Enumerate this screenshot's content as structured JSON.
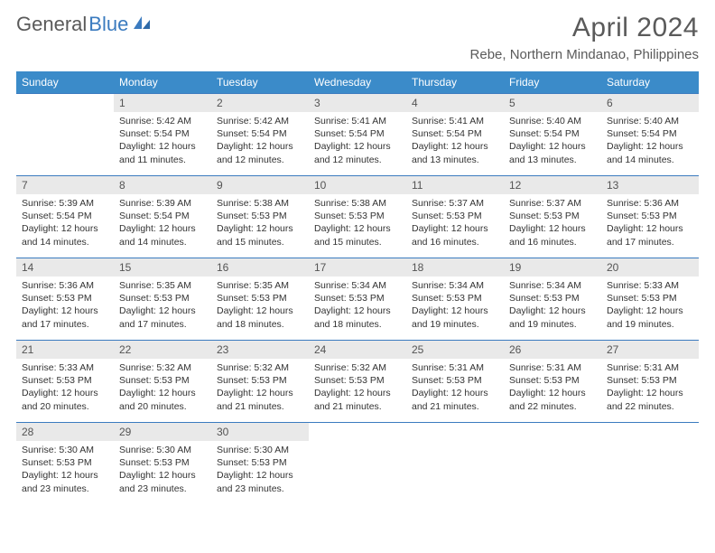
{
  "logo": {
    "text1": "General",
    "text2": "Blue"
  },
  "title": "April 2024",
  "location": "Rebe, Northern Mindanao, Philippines",
  "weekdays": [
    "Sunday",
    "Monday",
    "Tuesday",
    "Wednesday",
    "Thursday",
    "Friday",
    "Saturday"
  ],
  "colors": {
    "header_bg": "#3b8bc9",
    "header_fg": "#ffffff",
    "daynum_bg": "#e9e9e9",
    "row_divider": "#3b7bbf",
    "text": "#333333",
    "title_color": "#5a5a5a"
  },
  "days": [
    {
      "n": "",
      "sunrise": "",
      "sunset": "",
      "daylight": ""
    },
    {
      "n": "1",
      "sunrise": "Sunrise: 5:42 AM",
      "sunset": "Sunset: 5:54 PM",
      "daylight": "Daylight: 12 hours and 11 minutes."
    },
    {
      "n": "2",
      "sunrise": "Sunrise: 5:42 AM",
      "sunset": "Sunset: 5:54 PM",
      "daylight": "Daylight: 12 hours and 12 minutes."
    },
    {
      "n": "3",
      "sunrise": "Sunrise: 5:41 AM",
      "sunset": "Sunset: 5:54 PM",
      "daylight": "Daylight: 12 hours and 12 minutes."
    },
    {
      "n": "4",
      "sunrise": "Sunrise: 5:41 AM",
      "sunset": "Sunset: 5:54 PM",
      "daylight": "Daylight: 12 hours and 13 minutes."
    },
    {
      "n": "5",
      "sunrise": "Sunrise: 5:40 AM",
      "sunset": "Sunset: 5:54 PM",
      "daylight": "Daylight: 12 hours and 13 minutes."
    },
    {
      "n": "6",
      "sunrise": "Sunrise: 5:40 AM",
      "sunset": "Sunset: 5:54 PM",
      "daylight": "Daylight: 12 hours and 14 minutes."
    },
    {
      "n": "7",
      "sunrise": "Sunrise: 5:39 AM",
      "sunset": "Sunset: 5:54 PM",
      "daylight": "Daylight: 12 hours and 14 minutes."
    },
    {
      "n": "8",
      "sunrise": "Sunrise: 5:39 AM",
      "sunset": "Sunset: 5:54 PM",
      "daylight": "Daylight: 12 hours and 14 minutes."
    },
    {
      "n": "9",
      "sunrise": "Sunrise: 5:38 AM",
      "sunset": "Sunset: 5:53 PM",
      "daylight": "Daylight: 12 hours and 15 minutes."
    },
    {
      "n": "10",
      "sunrise": "Sunrise: 5:38 AM",
      "sunset": "Sunset: 5:53 PM",
      "daylight": "Daylight: 12 hours and 15 minutes."
    },
    {
      "n": "11",
      "sunrise": "Sunrise: 5:37 AM",
      "sunset": "Sunset: 5:53 PM",
      "daylight": "Daylight: 12 hours and 16 minutes."
    },
    {
      "n": "12",
      "sunrise": "Sunrise: 5:37 AM",
      "sunset": "Sunset: 5:53 PM",
      "daylight": "Daylight: 12 hours and 16 minutes."
    },
    {
      "n": "13",
      "sunrise": "Sunrise: 5:36 AM",
      "sunset": "Sunset: 5:53 PM",
      "daylight": "Daylight: 12 hours and 17 minutes."
    },
    {
      "n": "14",
      "sunrise": "Sunrise: 5:36 AM",
      "sunset": "Sunset: 5:53 PM",
      "daylight": "Daylight: 12 hours and 17 minutes."
    },
    {
      "n": "15",
      "sunrise": "Sunrise: 5:35 AM",
      "sunset": "Sunset: 5:53 PM",
      "daylight": "Daylight: 12 hours and 17 minutes."
    },
    {
      "n": "16",
      "sunrise": "Sunrise: 5:35 AM",
      "sunset": "Sunset: 5:53 PM",
      "daylight": "Daylight: 12 hours and 18 minutes."
    },
    {
      "n": "17",
      "sunrise": "Sunrise: 5:34 AM",
      "sunset": "Sunset: 5:53 PM",
      "daylight": "Daylight: 12 hours and 18 minutes."
    },
    {
      "n": "18",
      "sunrise": "Sunrise: 5:34 AM",
      "sunset": "Sunset: 5:53 PM",
      "daylight": "Daylight: 12 hours and 19 minutes."
    },
    {
      "n": "19",
      "sunrise": "Sunrise: 5:34 AM",
      "sunset": "Sunset: 5:53 PM",
      "daylight": "Daylight: 12 hours and 19 minutes."
    },
    {
      "n": "20",
      "sunrise": "Sunrise: 5:33 AM",
      "sunset": "Sunset: 5:53 PM",
      "daylight": "Daylight: 12 hours and 19 minutes."
    },
    {
      "n": "21",
      "sunrise": "Sunrise: 5:33 AM",
      "sunset": "Sunset: 5:53 PM",
      "daylight": "Daylight: 12 hours and 20 minutes."
    },
    {
      "n": "22",
      "sunrise": "Sunrise: 5:32 AM",
      "sunset": "Sunset: 5:53 PM",
      "daylight": "Daylight: 12 hours and 20 minutes."
    },
    {
      "n": "23",
      "sunrise": "Sunrise: 5:32 AM",
      "sunset": "Sunset: 5:53 PM",
      "daylight": "Daylight: 12 hours and 21 minutes."
    },
    {
      "n": "24",
      "sunrise": "Sunrise: 5:32 AM",
      "sunset": "Sunset: 5:53 PM",
      "daylight": "Daylight: 12 hours and 21 minutes."
    },
    {
      "n": "25",
      "sunrise": "Sunrise: 5:31 AM",
      "sunset": "Sunset: 5:53 PM",
      "daylight": "Daylight: 12 hours and 21 minutes."
    },
    {
      "n": "26",
      "sunrise": "Sunrise: 5:31 AM",
      "sunset": "Sunset: 5:53 PM",
      "daylight": "Daylight: 12 hours and 22 minutes."
    },
    {
      "n": "27",
      "sunrise": "Sunrise: 5:31 AM",
      "sunset": "Sunset: 5:53 PM",
      "daylight": "Daylight: 12 hours and 22 minutes."
    },
    {
      "n": "28",
      "sunrise": "Sunrise: 5:30 AM",
      "sunset": "Sunset: 5:53 PM",
      "daylight": "Daylight: 12 hours and 23 minutes."
    },
    {
      "n": "29",
      "sunrise": "Sunrise: 5:30 AM",
      "sunset": "Sunset: 5:53 PM",
      "daylight": "Daylight: 12 hours and 23 minutes."
    },
    {
      "n": "30",
      "sunrise": "Sunrise: 5:30 AM",
      "sunset": "Sunset: 5:53 PM",
      "daylight": "Daylight: 12 hours and 23 minutes."
    },
    {
      "n": "",
      "sunrise": "",
      "sunset": "",
      "daylight": ""
    },
    {
      "n": "",
      "sunrise": "",
      "sunset": "",
      "daylight": ""
    },
    {
      "n": "",
      "sunrise": "",
      "sunset": "",
      "daylight": ""
    },
    {
      "n": "",
      "sunrise": "",
      "sunset": "",
      "daylight": ""
    }
  ]
}
